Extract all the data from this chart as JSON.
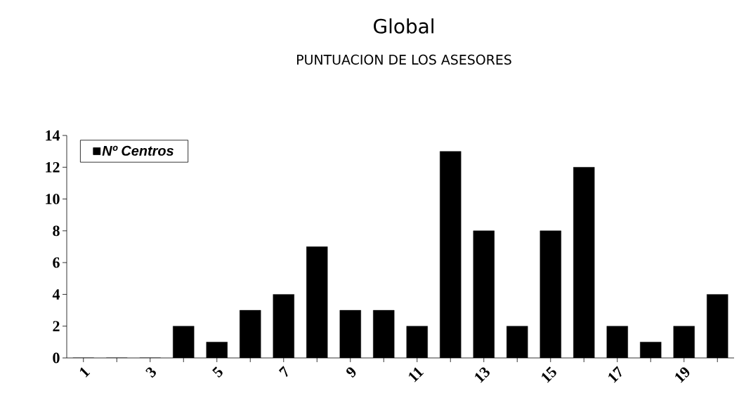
{
  "chart_data": {
    "type": "bar",
    "title": "Global",
    "subtitle": "PUNTUACION DE LOS ASESORES",
    "categories": [
      "1",
      null,
      "3",
      null,
      "5",
      null,
      "7",
      null,
      "9",
      null,
      "11",
      null,
      "13",
      null,
      "15",
      null,
      "17",
      null,
      "19",
      null
    ],
    "series": [
      {
        "name": "Nº Centros",
        "color": "#000000",
        "values": [
          0,
          0,
          0,
          2,
          1,
          3,
          4,
          7,
          3,
          3,
          2,
          13,
          8,
          2,
          8,
          12,
          2,
          1,
          2,
          4
        ]
      }
    ],
    "ylim": [
      0,
      14
    ],
    "yticks": [
      0,
      2,
      4,
      6,
      8,
      10,
      12,
      14
    ],
    "legend": "top left",
    "grid": false
  }
}
